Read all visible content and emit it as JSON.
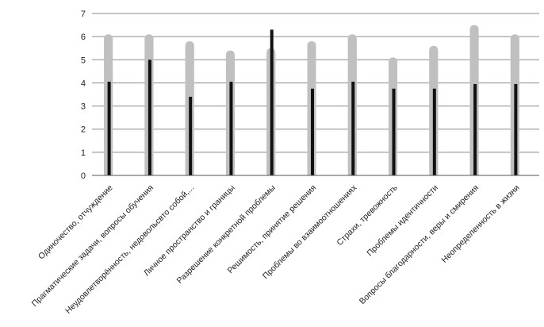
{
  "chart_data": {
    "type": "bar",
    "title": "",
    "xlabel": "",
    "ylabel": "",
    "ylim": [
      0,
      7
    ],
    "yticks": [
      0,
      1,
      2,
      3,
      4,
      5,
      6,
      7
    ],
    "grid": true,
    "legend": "none",
    "categories": [
      "Одиночество, отчуждение",
      "Прагматические задачи, вопросы обучения",
      "Неудовлетворённость, недовольсвто собой,...",
      "Личное пространство и границы",
      "Разрешение конкретной проблемы",
      "Решимость, принятие решения",
      "Проблемы во взаимоотношениях",
      "Страхи, тревожность",
      "Проблемы идентичности",
      "Вопросы благодарности, веры и смирения",
      "Неопределенность в жизни"
    ],
    "series": [
      {
        "values": [
          6.1,
          6.1,
          5.8,
          5.4,
          5.5,
          5.8,
          6.1,
          5.1,
          5.6,
          6.5,
          6.1
        ],
        "color": "#c0c0c0"
      },
      {
        "values": [
          4.05,
          5.0,
          3.4,
          4.05,
          6.3,
          3.75,
          4.05,
          3.75,
          3.75,
          3.95,
          3.95
        ],
        "color": "#111111"
      }
    ]
  }
}
